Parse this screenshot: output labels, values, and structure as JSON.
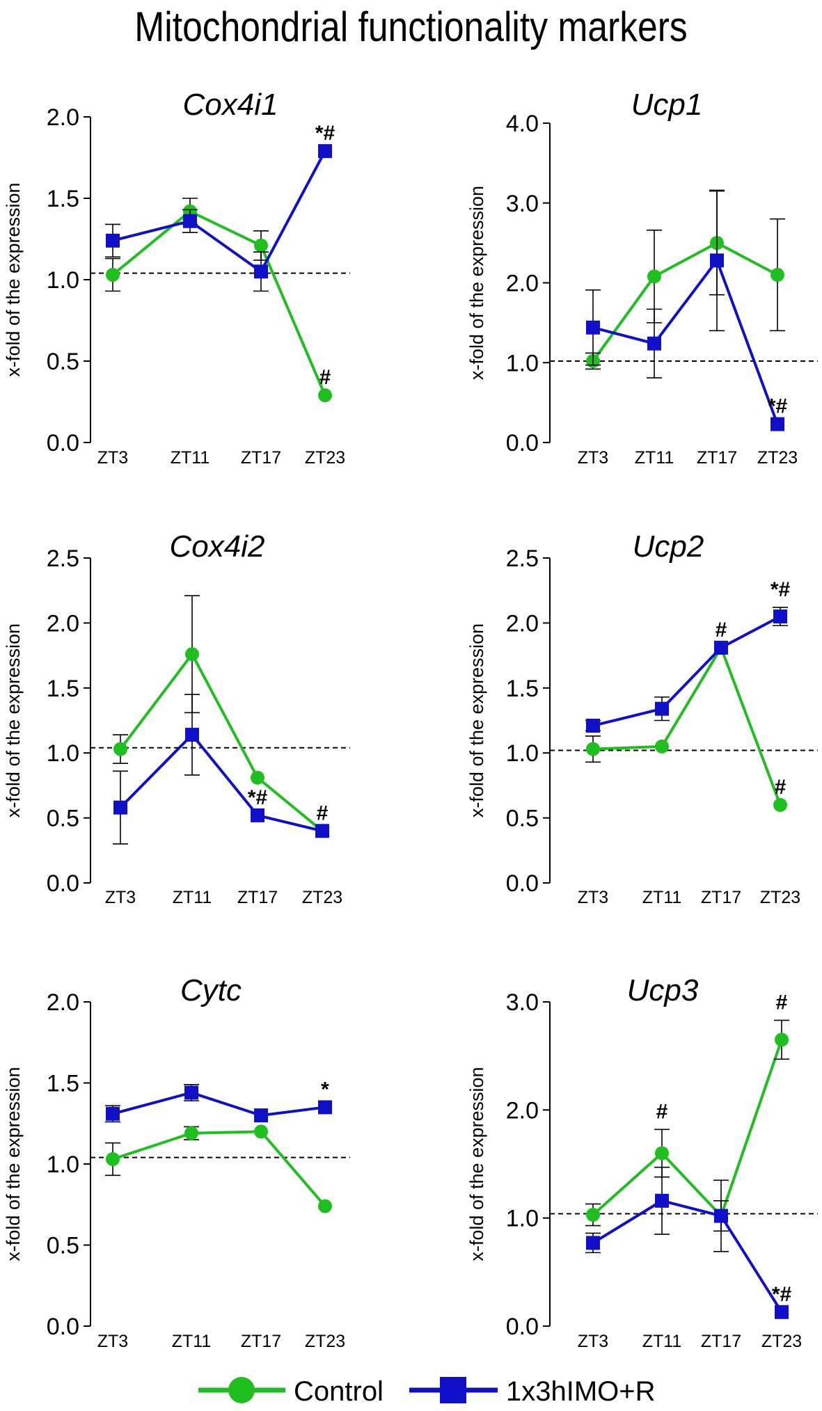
{
  "title": "Mitochondrial functionality markers",
  "legend": [
    {
      "name": "Control",
      "color": "#1fbf1f",
      "marker": "circle"
    },
    {
      "name": "1x3hIMO+R",
      "color": "#1010c8",
      "marker": "square"
    }
  ],
  "chart_data": [
    {
      "type": "line",
      "title": "Cox4i1",
      "ylabel": "x-fold of the expression",
      "categories": [
        "ZT3",
        "ZT11",
        "ZT17",
        "ZT23"
      ],
      "ylim": [
        0,
        2.0
      ],
      "yticks": [
        0.0,
        0.5,
        1.0,
        1.5,
        2.0
      ],
      "reference_line": 1.04,
      "series": [
        {
          "name": "Control",
          "values": [
            1.03,
            1.42,
            1.21,
            0.29
          ],
          "errors": [
            0.1,
            0.08,
            0.09,
            0.0
          ]
        },
        {
          "name": "1x3hIMO+R",
          "values": [
            1.24,
            1.36,
            1.05,
            1.79
          ],
          "errors": [
            0.1,
            0.07,
            0.12,
            0.0
          ]
        }
      ],
      "annotations": [
        {
          "category": "ZT23",
          "series": "Control",
          "text": "#"
        },
        {
          "category": "ZT23",
          "series": "1x3hIMO+R",
          "text": "*#"
        }
      ]
    },
    {
      "type": "line",
      "title": "Ucp1",
      "ylabel": "x-fold of the expression",
      "categories": [
        "ZT3",
        "ZT11",
        "ZT17",
        "ZT23"
      ],
      "ylim": [
        0,
        4.0
      ],
      "yticks": [
        0.0,
        1.0,
        2.0,
        3.0,
        4.0
      ],
      "reference_line": 1.02,
      "series": [
        {
          "name": "Control",
          "values": [
            1.02,
            2.08,
            2.5,
            2.1
          ],
          "errors": [
            0.1,
            0.58,
            0.65,
            0.7
          ]
        },
        {
          "name": "1x3hIMO+R",
          "values": [
            1.44,
            1.24,
            2.28,
            0.23
          ],
          "errors": [
            0.47,
            0.43,
            0.88,
            0.0
          ]
        }
      ],
      "annotations": [
        {
          "category": "ZT23",
          "series": "1x3hIMO+R",
          "text": "*#"
        }
      ]
    },
    {
      "type": "line",
      "title": "Cox4i2",
      "ylabel": "x-fold of the expression",
      "categories": [
        "ZT3",
        "ZT11",
        "ZT17",
        "ZT23"
      ],
      "ylim": [
        0,
        2.5
      ],
      "yticks": [
        0.0,
        0.5,
        1.0,
        1.5,
        2.0,
        2.5
      ],
      "reference_line": 1.04,
      "series": [
        {
          "name": "Control",
          "values": [
            1.03,
            1.76,
            0.81,
            0.4
          ],
          "errors": [
            0.11,
            0.45,
            0.0,
            0.0
          ]
        },
        {
          "name": "1x3hIMO+R",
          "values": [
            0.58,
            1.14,
            0.52,
            0.4
          ],
          "errors": [
            0.28,
            0.31,
            0.0,
            0.0
          ]
        }
      ],
      "annotations": [
        {
          "category": "ZT17",
          "series": "1x3hIMO+R",
          "text": "*#"
        },
        {
          "category": "ZT23",
          "series": "1x3hIMO+R",
          "text": "#"
        }
      ]
    },
    {
      "type": "line",
      "title": "Ucp2",
      "ylabel": "x-fold of the expression",
      "categories": [
        "ZT3",
        "ZT11",
        "ZT17",
        "ZT23"
      ],
      "ylim": [
        0,
        2.5
      ],
      "yticks": [
        0.0,
        0.5,
        1.0,
        1.5,
        2.0,
        2.5
      ],
      "reference_line": 1.02,
      "series": [
        {
          "name": "Control",
          "values": [
            1.03,
            1.05,
            1.81,
            0.6
          ],
          "errors": [
            0.1,
            0.0,
            0.0,
            0.0
          ]
        },
        {
          "name": "1x3hIMO+R",
          "values": [
            1.21,
            1.34,
            1.81,
            2.05
          ],
          "errors": [
            0.04,
            0.09,
            0.0,
            0.07
          ]
        }
      ],
      "annotations": [
        {
          "category": "ZT17",
          "series": "1x3hIMO+R",
          "text": "#"
        },
        {
          "category": "ZT23",
          "series": "1x3hIMO+R",
          "text": "*#"
        },
        {
          "category": "ZT23",
          "series": "Control",
          "text": "#"
        }
      ]
    },
    {
      "type": "line",
      "title": "Cytc",
      "ylabel": "x-fold of the expression",
      "categories": [
        "ZT3",
        "ZT11",
        "ZT17",
        "ZT23"
      ],
      "ylim": [
        0,
        2.0
      ],
      "yticks": [
        0.0,
        0.5,
        1.0,
        1.5,
        2.0
      ],
      "reference_line": 1.04,
      "series": [
        {
          "name": "Control",
          "values": [
            1.03,
            1.19,
            1.2,
            0.74
          ],
          "errors": [
            0.1,
            0.04,
            0.0,
            0.0
          ]
        },
        {
          "name": "1x3hIMO+R",
          "values": [
            1.31,
            1.44,
            1.3,
            1.35
          ],
          "errors": [
            0.05,
            0.05,
            0.0,
            0.0
          ]
        }
      ],
      "annotations": [
        {
          "category": "ZT23",
          "series": "1x3hIMO+R",
          "text": "*"
        }
      ]
    },
    {
      "type": "line",
      "title": "Ucp3",
      "ylabel": "x-fold of the expression",
      "categories": [
        "ZT3",
        "ZT11",
        "ZT17",
        "ZT23"
      ],
      "ylim": [
        0,
        3.0
      ],
      "yticks": [
        0.0,
        1.0,
        2.0,
        3.0
      ],
      "reference_line": 1.04,
      "series": [
        {
          "name": "Control",
          "values": [
            1.03,
            1.6,
            1.02,
            2.65
          ],
          "errors": [
            0.1,
            0.22,
            0.14,
            0.18
          ]
        },
        {
          "name": "1x3hIMO+R",
          "values": [
            0.77,
            1.16,
            1.02,
            0.13
          ],
          "errors": [
            0.09,
            0.31,
            0.33,
            0.0
          ]
        }
      ],
      "annotations": [
        {
          "category": "ZT11",
          "series": "Control",
          "text": "#"
        },
        {
          "category": "ZT23",
          "series": "Control",
          "text": "#"
        },
        {
          "category": "ZT23",
          "series": "1x3hIMO+R",
          "text": "*#"
        }
      ]
    }
  ]
}
